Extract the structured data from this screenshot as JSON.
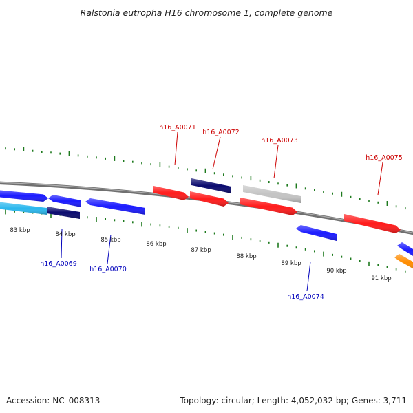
{
  "title": "Ralstonia eutropha H16 chromosome 1, complete genome",
  "accession": "Accession: NC_008313",
  "summary": "Topology: circular; Length: 4,052,032 bp; Genes: 3,711",
  "colors": {
    "backbone": "#808080",
    "tick": "#1e7a1e",
    "label_forward": "#cc0000",
    "label_reverse": "#0000bb",
    "red": "#ff1a1a",
    "blue": "#1a1aff",
    "navy": "#0a0a6e",
    "cyan": "#2ab8ee",
    "grey": "#c4c4c4",
    "orange": "#ff8c00"
  },
  "kbp_ticks": [
    "83 kbp",
    "84 kbp",
    "85 kbp",
    "86 kbp",
    "87 kbp",
    "88 kbp",
    "89 kbp",
    "90 kbp",
    "91 kbp"
  ],
  "gene_labels": [
    {
      "text": "h16_A0071",
      "strand": "forward"
    },
    {
      "text": "h16_A0072",
      "strand": "forward"
    },
    {
      "text": "h16_A0073",
      "strand": "forward"
    },
    {
      "text": "h16_A0075",
      "strand": "forward"
    },
    {
      "text": "h16_A0069",
      "strand": "reverse"
    },
    {
      "text": "h16_A0070",
      "strand": "reverse"
    },
    {
      "text": "h16_A0074",
      "strand": "reverse"
    }
  ]
}
